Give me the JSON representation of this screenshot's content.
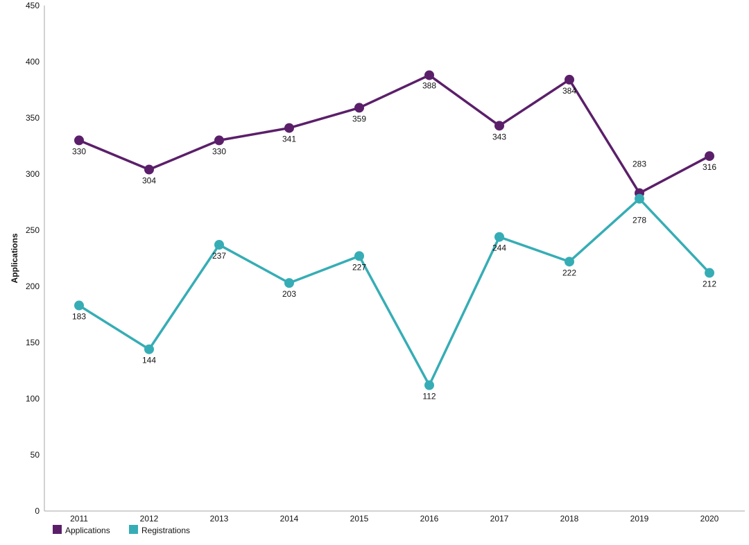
{
  "chart_data": {
    "type": "line",
    "title": "",
    "xlabel": "",
    "ylabel": "Applications",
    "ylim": [
      0,
      450
    ],
    "yticks": [
      0,
      50,
      100,
      150,
      200,
      250,
      300,
      350,
      400,
      450
    ],
    "categories": [
      "2011",
      "2012",
      "2013",
      "2014",
      "2015",
      "2016",
      "2017",
      "2018",
      "2019",
      "2020"
    ],
    "series": [
      {
        "name": "Applications",
        "color": "#5b1f6a",
        "values": [
          330,
          304,
          330,
          341,
          359,
          388,
          343,
          384,
          283,
          316
        ]
      },
      {
        "name": "Registrations",
        "color": "#36adb5",
        "values": [
          183,
          144,
          237,
          203,
          227,
          112,
          244,
          222,
          278,
          212
        ]
      }
    ],
    "legend_position": "bottom-left",
    "grid": false
  }
}
